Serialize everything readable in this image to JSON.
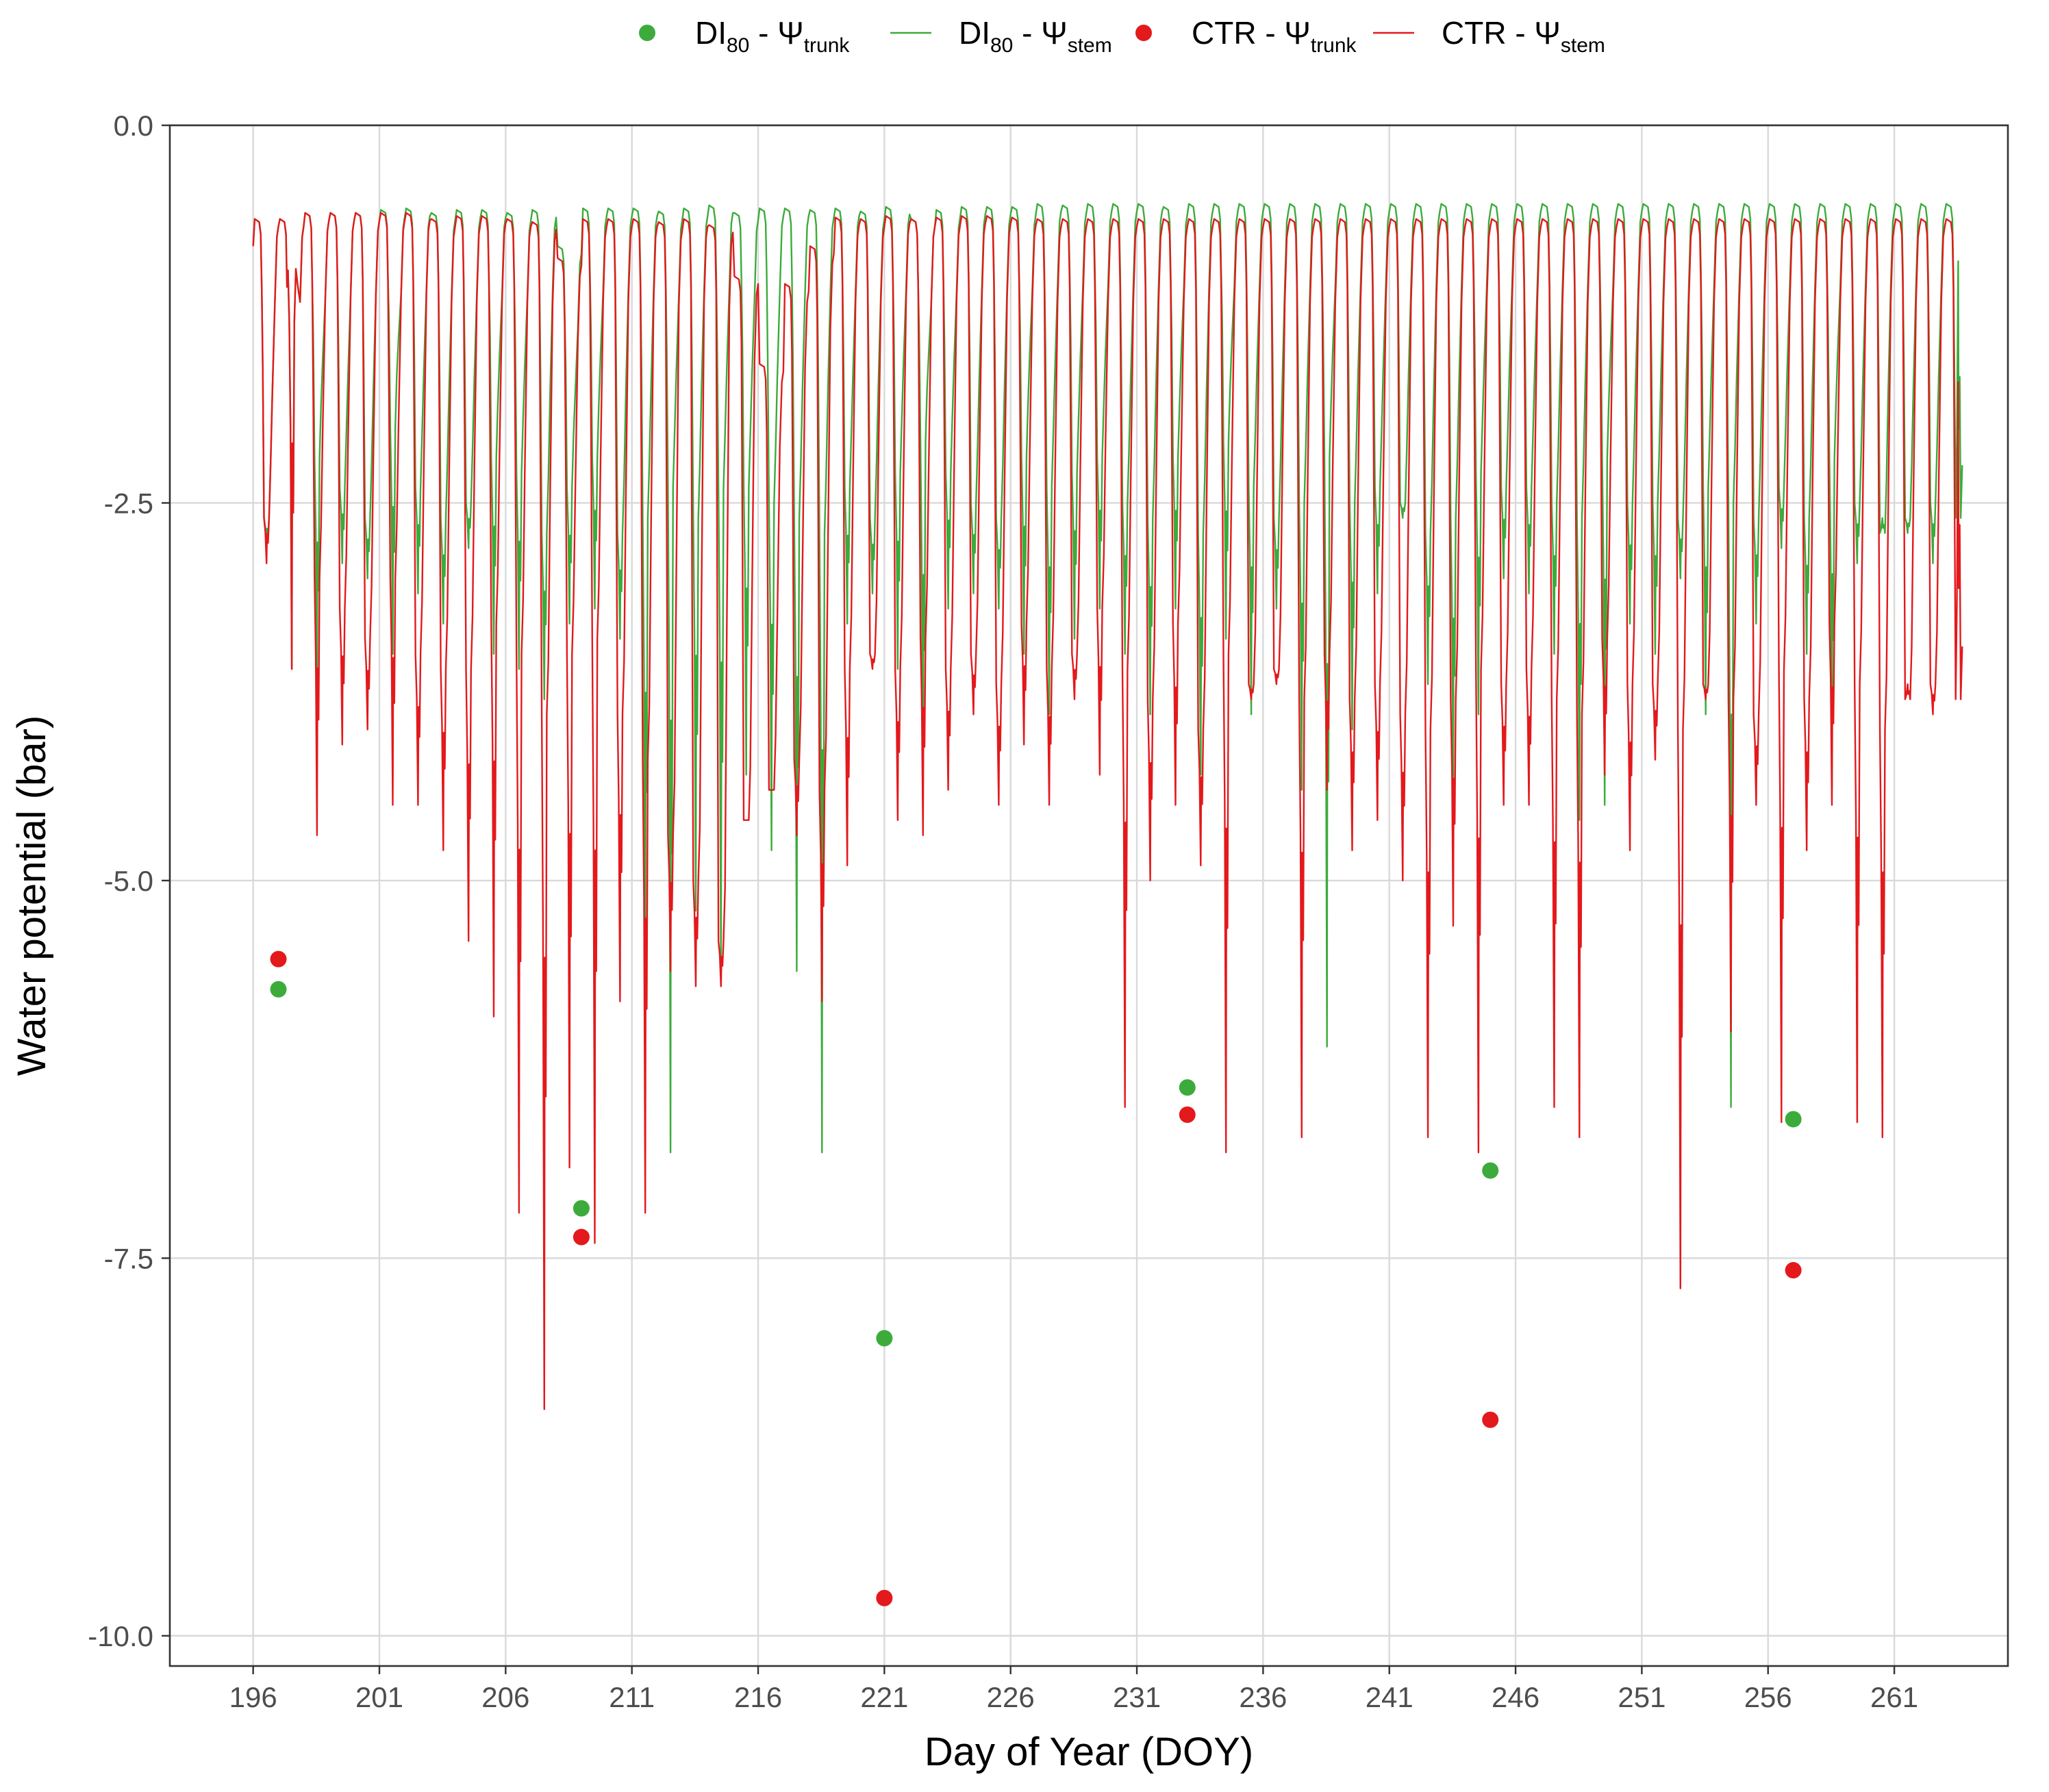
{
  "chart_data": {
    "type": "line",
    "title": "",
    "xlabel": "Day of Year (DOY)",
    "ylabel": "Water potential (bar)",
    "xlim": [
      192.7,
      265.5
    ],
    "ylim": [
      -10.2,
      0
    ],
    "x_ticks": [
      196,
      201,
      206,
      211,
      216,
      221,
      226,
      231,
      236,
      241,
      246,
      251,
      256,
      261
    ],
    "x_tick_labels": [
      "196",
      "201",
      "206",
      "211",
      "216",
      "221",
      "226",
      "231",
      "236",
      "241",
      "246",
      "251",
      "256",
      "261"
    ],
    "y_ticks": [
      0,
      -2.5,
      -5,
      -7.5,
      -10
    ],
    "y_tick_labels": [
      "0.0",
      "-2.5",
      "-5.0",
      "-7.5",
      "-10.0"
    ],
    "grid": true,
    "legend_position": "top",
    "legend": [
      {
        "key": "dl_trunk",
        "kind": "point",
        "color": "#3cab3c",
        "parts": [
          [
            "DI",
            "n"
          ],
          [
            "80",
            "sub"
          ],
          [
            " - Ψ",
            "n"
          ],
          [
            "trunk",
            "sub"
          ]
        ]
      },
      {
        "key": "dl_stem",
        "kind": "line",
        "color": "#3cab3c",
        "parts": [
          [
            "DI",
            "n"
          ],
          [
            "80",
            "sub"
          ],
          [
            " - Ψ",
            "n"
          ],
          [
            "stem",
            "sub"
          ]
        ]
      },
      {
        "key": "ctr_trunk",
        "kind": "point",
        "color": "#e3191c",
        "parts": [
          [
            "CTR - Ψ",
            "n"
          ],
          [
            "trunk",
            "sub"
          ]
        ]
      },
      {
        "key": "ctr_stem",
        "kind": "line",
        "color": "#e3191c",
        "parts": [
          [
            "CTR - Ψ",
            "n"
          ],
          [
            "stem",
            "sub"
          ]
        ]
      }
    ],
    "colors": {
      "dl": "#3cab3c",
      "ctr": "#e3191c",
      "grid": "#d9d9d9",
      "frame": "#333333",
      "axis_text": "#4d4d4d"
    },
    "points": {
      "dl_trunk": {
        "x": [
          197,
          209,
          221,
          233,
          245,
          257
        ],
        "y": [
          -5.72,
          -7.17,
          -8.03,
          -6.37,
          -6.92,
          -6.58
        ]
      },
      "ctr_trunk": {
        "x": [
          197,
          209,
          221,
          233,
          245,
          257
        ],
        "y": [
          -5.52,
          -7.36,
          -9.75,
          -6.55,
          -8.57,
          -7.58
        ]
      }
    },
    "line_series": {
      "start_doy": 196,
      "dl_stem": {
        "pre_dawn": [
          -0.62,
          -0.62,
          -0.58,
          -0.58,
          -0.58,
          -0.56,
          -0.55,
          -0.58,
          -0.56,
          -0.56,
          -0.58,
          -0.56,
          -0.8,
          -0.55,
          -0.55,
          -0.55,
          -0.57,
          -0.55,
          -0.53,
          -0.58,
          -0.55,
          -0.55,
          -0.56,
          -0.55,
          -0.57,
          -0.54,
          -0.62,
          -0.56,
          -0.54,
          -0.54,
          -0.54,
          -0.52,
          -0.53,
          -0.52,
          -0.52,
          -0.52,
          -0.54,
          -0.52,
          -0.52,
          -0.52,
          -0.52,
          -0.52,
          -0.52,
          -0.52,
          -0.52,
          -0.52,
          -0.52,
          -0.52,
          -0.52,
          -0.52,
          -0.52,
          -0.52,
          -0.52,
          -0.52,
          -0.52,
          -0.52,
          -0.52,
          -0.52,
          -0.52,
          -0.52,
          -0.52,
          -0.52,
          -0.52,
          -0.52,
          -0.52,
          -0.52,
          -0.52,
          -0.52
        ],
        "midday_min": [
          -2.8,
          -3.6,
          -3.8,
          -2.9,
          -3.0,
          -3.5,
          -3.1,
          -3.3,
          -2.8,
          -3.5,
          -3.6,
          -3.8,
          -3.3,
          -3.2,
          -3.4,
          -5.9,
          -6.8,
          -5.2,
          -5.7,
          -4.3,
          -4.8,
          -5.6,
          -6.8,
          -3.3,
          -3.1,
          -3.6,
          -4.6,
          -3.2,
          -3.1,
          -3.2,
          -3.5,
          -3.9,
          -3.4,
          -3.2,
          -3.5,
          -3.9,
          -3.2,
          -4.3,
          -3.4,
          -3.9,
          -3.2,
          -4.4,
          -6.1,
          -4.0,
          -3.1,
          -2.6,
          -3.7,
          -4.5,
          -3.9,
          -3.0,
          -3.1,
          -3.5,
          -4.6,
          -4.5,
          -3.3,
          -3.5,
          -3.0,
          -3.9,
          -6.5,
          -3.3,
          -2.8,
          -3.5,
          -4.4,
          -2.9,
          -2.6,
          -2.7,
          -2.9,
          -0.9
        ],
        "noon_rest": [
          -2.6,
          -1.3,
          -2.2,
          -2.4,
          -2.6,
          -2.0,
          -2.4,
          -2.6,
          -2.5,
          -2.2,
          -2.3,
          -2.7,
          -2.4,
          -2.2,
          -2.7,
          -2.6,
          -2.4,
          -2.6,
          -2.4,
          -2.4,
          -2.5,
          -2.6,
          -2.7,
          -2.4,
          -2.6,
          -2.3,
          -2.1,
          -2.3,
          -2.5,
          -2.6,
          -2.2,
          -2.4,
          -2.3,
          -2.2,
          -2.5,
          -2.6,
          -2.2,
          -2.7,
          -2.1,
          -2.4,
          -2.6,
          -2.5,
          -2.2,
          -2.5,
          -2.4,
          -2.5,
          -2.7,
          -2.6,
          -2.3,
          -2.4,
          -2.4,
          -2.5,
          -2.6,
          -2.2,
          -2.5,
          -2.5,
          -2.6,
          -2.4,
          -2.5,
          -2.6,
          -2.4,
          -2.6,
          -2.2,
          -2.5,
          -2.7,
          -2.6,
          -2.5,
          -2.6
        ]
      },
      "ctr_stem": {
        "pre_dawn": [
          -0.62,
          -0.62,
          -0.58,
          -0.58,
          -0.58,
          -0.58,
          -0.58,
          -0.62,
          -0.6,
          -0.6,
          -0.62,
          -0.64,
          -0.88,
          -0.62,
          -0.62,
          -0.62,
          -0.64,
          -0.62,
          -0.66,
          -1.0,
          -1.58,
          -1.05,
          -0.8,
          -0.61,
          -0.62,
          -0.6,
          -0.62,
          -0.61,
          -0.6,
          -0.6,
          -0.61,
          -0.62,
          -0.62,
          -0.62,
          -0.62,
          -0.62,
          -0.62,
          -0.62,
          -0.62,
          -0.62,
          -0.62,
          -0.62,
          -0.62,
          -0.62,
          -0.62,
          -0.62,
          -0.62,
          -0.62,
          -0.62,
          -0.62,
          -0.62,
          -0.62,
          -0.62,
          -0.62,
          -0.62,
          -0.62,
          -0.62,
          -0.62,
          -0.62,
          -0.62,
          -0.62,
          -0.62,
          -0.62,
          -0.62,
          -0.62,
          -0.62,
          -0.62,
          -0.62
        ],
        "midday_min": [
          -2.9,
          -3.6,
          -4.7,
          -4.1,
          -4.0,
          -4.5,
          -4.5,
          -4.8,
          -5.4,
          -5.9,
          -7.2,
          -8.5,
          -6.9,
          -7.4,
          -5.8,
          -7.2,
          -5.6,
          -5.7,
          -5.7,
          -4.6,
          -4.4,
          -4.7,
          -5.8,
          -4.9,
          -3.6,
          -4.6,
          -4.7,
          -4.4,
          -3.9,
          -4.5,
          -4.1,
          -4.5,
          -3.8,
          -4.3,
          -6.5,
          -5.0,
          -4.5,
          -4.9,
          -6.8,
          -3.8,
          -3.7,
          -6.7,
          -4.4,
          -4.8,
          -4.6,
          -5.0,
          -6.7,
          -5.3,
          -6.8,
          -4.5,
          -4.5,
          -6.5,
          -6.7,
          -4.3,
          -4.8,
          -4.2,
          -7.7,
          -3.8,
          -6.0,
          -4.5,
          -6.6,
          -4.8,
          -4.5,
          -6.6,
          -6.7,
          -3.7,
          -3.9,
          -1.7
        ],
        "noon_rest": [
          -2.6,
          -1.3,
          -3.0,
          -3.2,
          -3.4,
          -3.0,
          -3.5,
          -3.6,
          -3.6,
          -3.3,
          -3.5,
          -3.9,
          -3.5,
          -3.4,
          -3.9,
          -4.2,
          -4.7,
          -5.0,
          -5.4,
          -4.6,
          -4.4,
          -4.2,
          -4.4,
          -3.6,
          -3.5,
          -3.6,
          -3.4,
          -3.6,
          -3.5,
          -3.7,
          -3.3,
          -3.6,
          -3.5,
          -3.2,
          -3.6,
          -3.8,
          -3.3,
          -4.0,
          -3.5,
          -3.7,
          -3.6,
          -3.8,
          -3.5,
          -3.8,
          -3.7,
          -3.9,
          -4.0,
          -3.8,
          -3.6,
          -3.7,
          -3.6,
          -3.8,
          -3.9,
          -3.4,
          -3.7,
          -3.7,
          -4.0,
          -3.7,
          -3.8,
          -3.9,
          -3.6,
          -3.8,
          -3.3,
          -3.7,
          -4.0,
          -3.8,
          -3.7,
          -3.8
        ]
      },
      "end_doy": 263.7
    }
  }
}
